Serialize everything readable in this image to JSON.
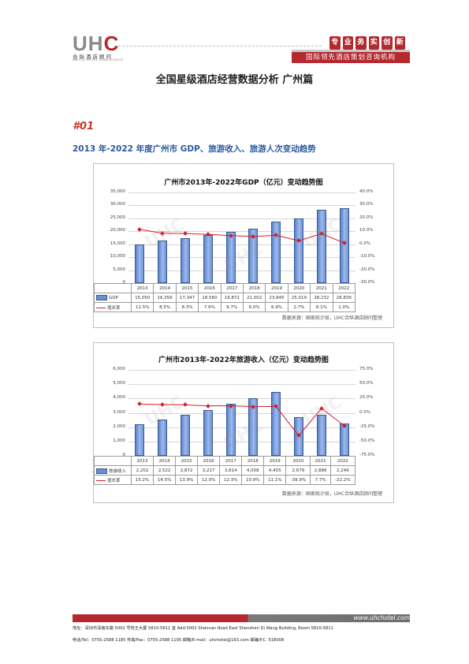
{
  "header": {
    "logo": {
      "text_grey": "UH",
      "text_red": "C",
      "subtitle": "合纵酒店顾问",
      "subtitle_en": "UNITED HOTEL CONSULTANTS"
    },
    "seal": [
      "专",
      "业",
      "务",
      "实",
      "创",
      "新"
    ],
    "banner": "国际领先酒店策划咨询机构"
  },
  "title": "全国星级酒店经营数据分析 广州篇",
  "section": {
    "number": "#01",
    "heading": "2013 年-2022 年度广州市 GDP、旅游收入、旅游人次变动趋势"
  },
  "chart_data": [
    {
      "type": "bar",
      "title": "广州市2013年-2022年GDP（亿元）变动趋势图",
      "categories": [
        "2013",
        "2014",
        "2015",
        "2016",
        "2017",
        "2018",
        "2019",
        "2020",
        "2021",
        "2022"
      ],
      "series": [
        {
          "name": "GDP",
          "type": "bar",
          "axis": "left",
          "values": [
            15050,
            16356,
            17347,
            18560,
            19872,
            21002,
            23845,
            25019,
            28232,
            28839
          ],
          "labels": [
            "15,050",
            "16,356",
            "17,347",
            "18,560",
            "19,872",
            "21,002",
            "23,845",
            "25,019",
            "28,232",
            "28,839"
          ]
        },
        {
          "name": "增长率",
          "type": "line",
          "axis": "right",
          "values": [
            11.5,
            8.5,
            8.3,
            7.6,
            6.7,
            6.0,
            6.9,
            2.7,
            8.1,
            1.0
          ],
          "labels": [
            "11.5%",
            "8.5%",
            "8.3%",
            "7.6%",
            "6.7%",
            "6.0%",
            "6.9%",
            "2.7%",
            "8.1%",
            "1.0%"
          ]
        }
      ],
      "y_left": {
        "range": [
          0,
          35000
        ],
        "ticks": [
          "0",
          "5,000",
          "10,000",
          "15,000",
          "20,000",
          "25,000",
          "30,000",
          "35,000"
        ]
      },
      "y_right": {
        "range": [
          -30,
          40
        ],
        "ticks": [
          "-30.0%",
          "-20.0%",
          "-10.0%",
          "0.0%",
          "10.0%",
          "20.0%",
          "30.0%",
          "40.0%"
        ]
      },
      "grid": true,
      "source": "数据来源：国家统计局，UHC合纵酒店顾问整理"
    },
    {
      "type": "bar",
      "title": "广州市2013年-2022年旅游收入（亿元）变动趋势图",
      "categories": [
        "2013",
        "2014",
        "2015",
        "2016",
        "2017",
        "2018",
        "2019",
        "2020",
        "2021",
        "2022"
      ],
      "series": [
        {
          "name": "旅游收入",
          "type": "bar",
          "axis": "left",
          "values": [
            2202,
            2522,
            2872,
            3217,
            3614,
            4008,
            4455,
            2679,
            2886,
            2246
          ],
          "labels": [
            "2,202",
            "2,522",
            "2,872",
            "3,217",
            "3,614",
            "4,008",
            "4,455",
            "2,679",
            "2,886",
            "2,246"
          ]
        },
        {
          "name": "增长率",
          "type": "line",
          "axis": "right",
          "values": [
            15.2,
            14.5,
            13.9,
            12.0,
            12.3,
            10.9,
            11.1,
            -39.9,
            7.7,
            -22.2
          ],
          "labels": [
            "15.2%",
            "14.5%",
            "13.9%",
            "12.0%",
            "12.3%",
            "10.9%",
            "11.1%",
            "-39.9%",
            "7.7%",
            "-22.2%"
          ]
        }
      ],
      "y_left": {
        "range": [
          0,
          6000
        ],
        "ticks": [
          "0",
          "1,000",
          "2,000",
          "3,000",
          "4,000",
          "5,000",
          "6,000"
        ]
      },
      "y_right": {
        "range": [
          -75,
          75
        ],
        "ticks": [
          "-75.0%",
          "-50.0%",
          "-25.0%",
          "0.0%",
          "25.0%",
          "50.0%",
          "75.0%"
        ]
      },
      "grid": true,
      "source": "数据来源：国家统计局，UHC合纵酒店顾问整理"
    }
  ],
  "footer": {
    "url": "www.uhchotel.com",
    "address": "地址：深圳市深南东路 5002 号地王大厦 5810-5811 室    Add:5002 Shennan Road East Shenzhen Di Wang Building, Room 5810-5811",
    "contact": "电话/Tel：0755-2588 1185     传真/Fax：0755-2588 1195     邮箱/E-mail：uhchotel@163.com     邮编/P.C. 518008"
  }
}
